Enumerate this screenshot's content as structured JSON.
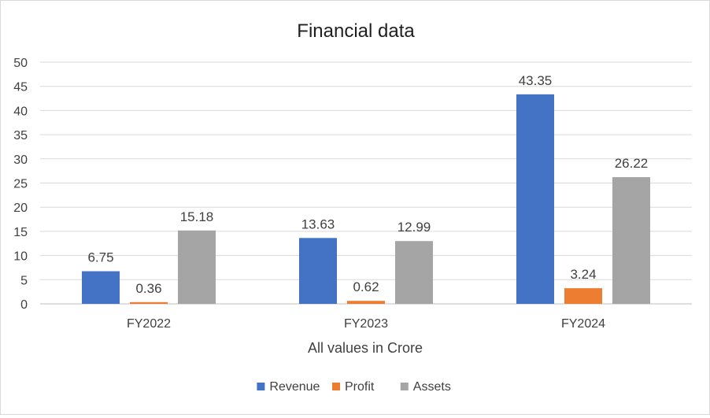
{
  "chart_data": {
    "type": "bar",
    "title": "Financial data",
    "xlabel": "All values in Crore",
    "ylabel": "",
    "categories": [
      "FY2022",
      "FY2023",
      "FY2024"
    ],
    "series": [
      {
        "name": "Revenue",
        "values": [
          6.75,
          13.63,
          43.35
        ],
        "color": "#4472c4"
      },
      {
        "name": "Profit",
        "values": [
          0.36,
          0.62,
          3.24
        ],
        "color": "#ed7d31"
      },
      {
        "name": "Assets",
        "values": [
          15.18,
          12.99,
          26.22
        ],
        "color": "#a5a5a5"
      }
    ],
    "ylim": [
      0,
      50
    ],
    "yticks": [
      0,
      5,
      10,
      15,
      20,
      25,
      30,
      35,
      40,
      45,
      50
    ],
    "grid": true,
    "legend": "bottom",
    "data_labels": true
  }
}
